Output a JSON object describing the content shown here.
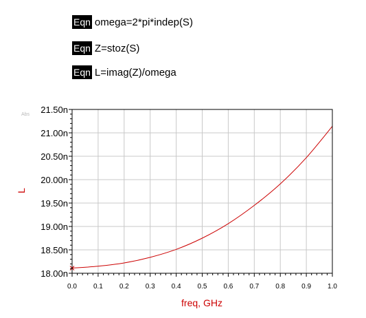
{
  "equations": [
    {
      "badge": "Eqn",
      "text": "omega=2*pi*indep(S)"
    },
    {
      "badge": "Eqn",
      "text": "Z=stoz(S)"
    },
    {
      "badge": "Eqn",
      "text": "L=imag(Z)/omega"
    }
  ],
  "colors": {
    "trace": "#cc0000",
    "grid": "#c8c8c8",
    "axis_label": "#cc0000",
    "tick_label": "#000000",
    "frame": "#000000"
  },
  "chart_data": {
    "type": "line",
    "xlabel": "freq, GHz",
    "ylabel": "L",
    "corner_label": "Abs",
    "xlim": [
      0.0,
      1.0
    ],
    "ylim": [
      18.0,
      21.5
    ],
    "grid": true,
    "x_ticks": [
      0.0,
      0.1,
      0.2,
      0.3,
      0.4,
      0.5,
      0.6,
      0.7,
      0.8,
      0.9,
      1.0
    ],
    "x_tick_labels": [
      "0.0",
      "0.1",
      "0.2",
      "0.3",
      "0.4",
      "0.5",
      "0.6",
      "0.7",
      "0.8",
      "0.9",
      "1.0"
    ],
    "y_ticks": [
      18.0,
      18.5,
      19.0,
      19.5,
      20.0,
      20.5,
      21.0,
      21.5
    ],
    "y_tick_labels": [
      "18.00n",
      "18.50n",
      "19.00n",
      "19.50n",
      "20.00n",
      "20.50n",
      "21.00n",
      "21.50n"
    ],
    "series": [
      {
        "x": [
          0.0,
          0.1,
          0.2,
          0.3,
          0.4,
          0.5,
          0.6,
          0.7,
          0.8,
          0.9,
          1.0
        ],
        "y": [
          18.11,
          18.15,
          18.22,
          18.34,
          18.51,
          18.75,
          19.06,
          19.45,
          19.91,
          20.47,
          21.14
        ]
      }
    ],
    "marker": {
      "x": 0.0,
      "y": 18.11
    }
  }
}
